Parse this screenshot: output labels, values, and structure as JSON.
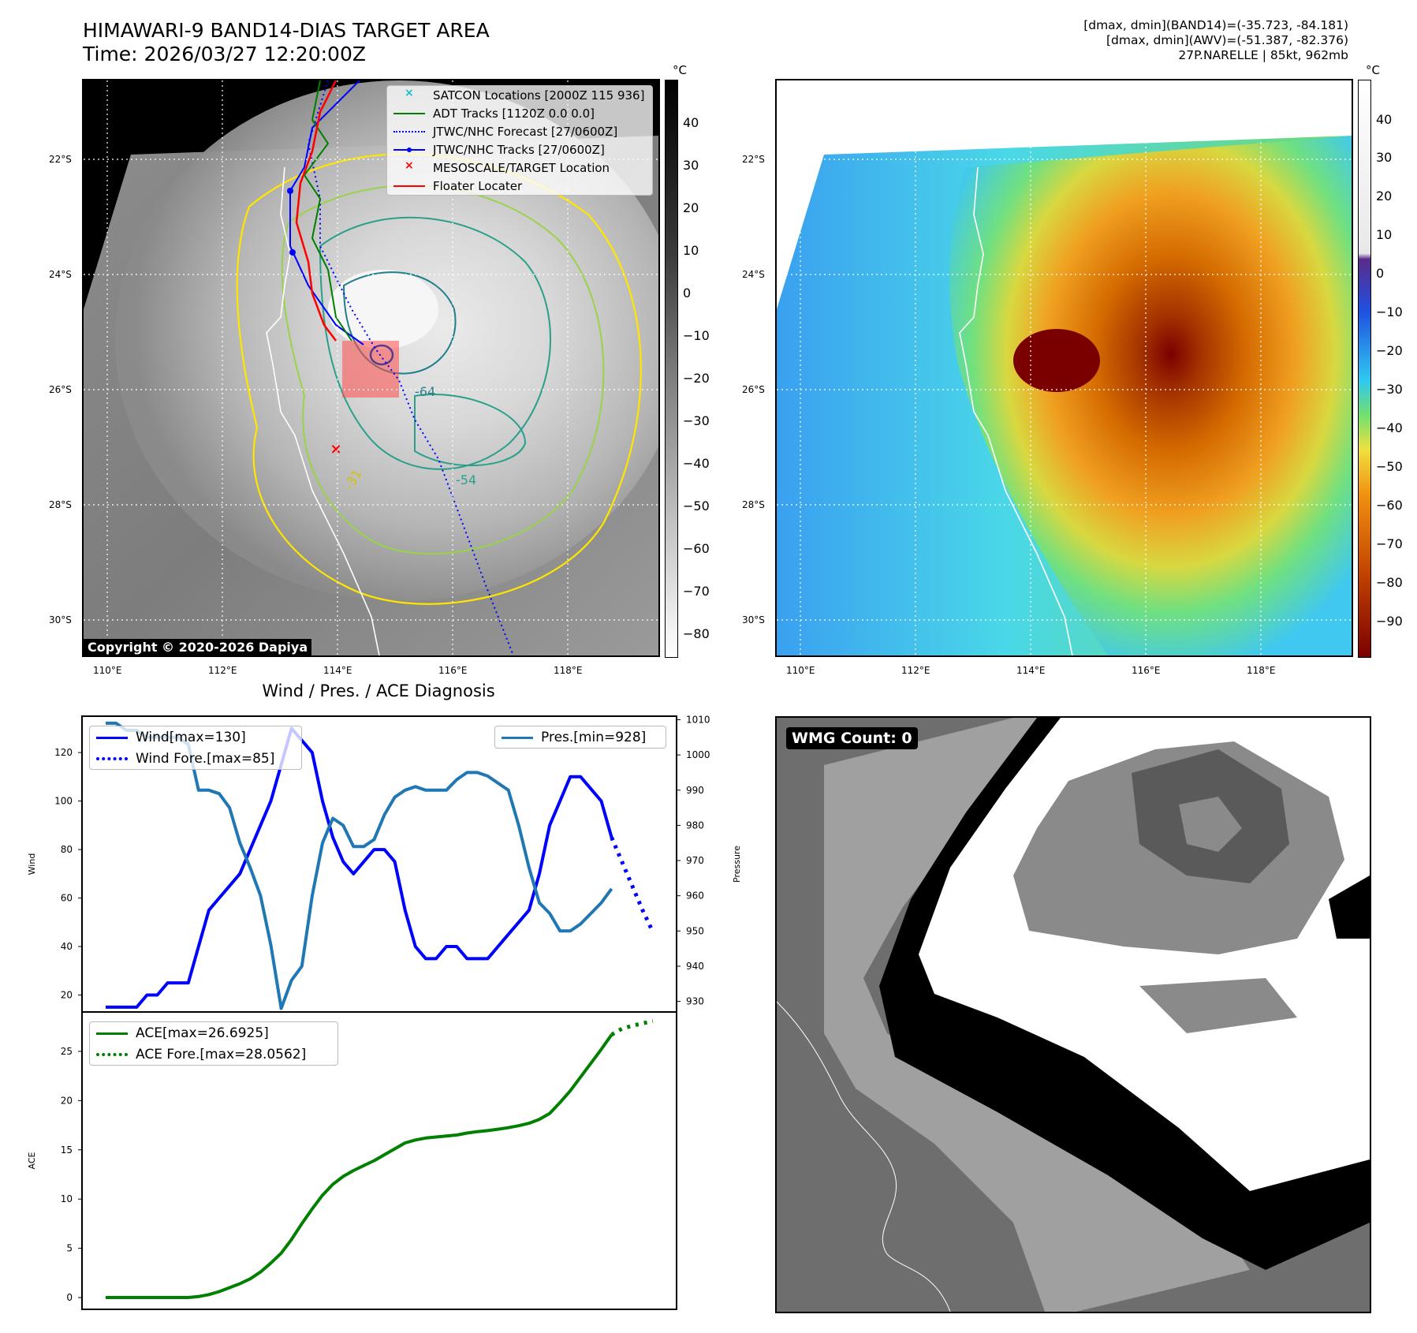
{
  "header": {
    "title_line1": "HIMAWARI-9 BAND14-DIAS TARGET AREA",
    "title_line2": "Time: 2026/03/27 12:20:00Z",
    "info_line1": "[dmax, dmin](BAND14)=(-35.723, -84.181)",
    "info_line2": "[dmax, dmin](AWV)=(-51.387, -82.376)",
    "info_line3": "27P.NARELLE | 85kt, 962mb"
  },
  "map": {
    "lat_labels": [
      "22°S",
      "24°S",
      "26°S",
      "28°S",
      "30°S"
    ],
    "lon_labels": [
      "110°E",
      "112°E",
      "114°E",
      "116°E",
      "118°E"
    ],
    "contour_labels": [
      "-64",
      "-54",
      "-31"
    ],
    "copyright": "Copyright © 2020-2026 Dapiya",
    "legend": [
      {
        "label": "SATCON Locations [2000Z 115 936]",
        "color": "#17becf",
        "marker": "x"
      },
      {
        "label": "ADT Tracks [1120Z 0.0 0.0]",
        "color": "#008000",
        "marker": "line"
      },
      {
        "label": "JTWC/NHC Forecast [27/0600Z]",
        "color": "#0000ff",
        "marker": "dotted"
      },
      {
        "label": "JTWC/NHC Tracks [27/0600Z]",
        "color": "#0000ff",
        "marker": "line-dot"
      },
      {
        "label": "MESOSCALE/TARGET Location",
        "color": "#ff0000",
        "marker": "x"
      },
      {
        "label": "Floater Locater",
        "color": "#ff0000",
        "marker": "line"
      }
    ]
  },
  "colorbar_gray": {
    "unit": "°C",
    "ticks": [
      "40",
      "30",
      "20",
      "10",
      "0",
      "−10",
      "−20",
      "−30",
      "−40",
      "−50",
      "−60",
      "−70",
      "−80"
    ]
  },
  "colorbar_color": {
    "unit": "°C",
    "ticks": [
      "40",
      "30",
      "20",
      "10",
      "0",
      "−10",
      "−20",
      "−30",
      "−40",
      "−50",
      "−60",
      "−70",
      "−80",
      "−90"
    ]
  },
  "wmg": {
    "label": "WMG Count: 0"
  },
  "chart_data": [
    {
      "type": "line",
      "title": "Wind / Pres. / ACE Diagnosis",
      "ylabel": "Wind",
      "y2label": "Pressure",
      "ylim": [
        13,
        135
      ],
      "y2lim": [
        927,
        1011
      ],
      "yticks": [
        "20",
        "40",
        "60",
        "80",
        "100",
        "120"
      ],
      "y2ticks": [
        "930",
        "940",
        "950",
        "960",
        "970",
        "980",
        "990",
        "1000",
        "1010"
      ],
      "series": [
        {
          "name": "Wind[max=130]",
          "color": "#0000ff",
          "style": "solid",
          "x": [
            0,
            1,
            2,
            3,
            4,
            5,
            6,
            7,
            8,
            9,
            10,
            11,
            12,
            13,
            14,
            15,
            16,
            17,
            18,
            19,
            20,
            21,
            22,
            23,
            24,
            25,
            26,
            27,
            28,
            29,
            30,
            31,
            32,
            33,
            34,
            35,
            36,
            37,
            38,
            39,
            40,
            41,
            42,
            43,
            44,
            45,
            46,
            47,
            48,
            49
          ],
          "values": [
            15,
            15,
            15,
            15,
            20,
            20,
            25,
            25,
            25,
            40,
            55,
            60,
            65,
            70,
            80,
            90,
            100,
            115,
            130,
            125,
            120,
            100,
            85,
            75,
            70,
            75,
            80,
            80,
            75,
            55,
            40,
            35,
            35,
            40,
            40,
            35,
            35,
            35,
            40,
            45,
            50,
            55,
            70,
            90,
            100,
            110,
            110,
            105,
            100,
            85
          ]
        },
        {
          "name": "Wind Fore.[max=85]",
          "color": "#0000ff",
          "style": "dotted",
          "x": [
            49,
            50,
            51,
            52,
            53
          ],
          "values": [
            85,
            75,
            65,
            55,
            46
          ]
        },
        {
          "name": "Pres.[min=928]",
          "color": "#1f77b4",
          "style": "solid",
          "axis": "right",
          "x": [
            0,
            1,
            2,
            3,
            4,
            5,
            6,
            7,
            8,
            9,
            10,
            11,
            12,
            13,
            14,
            15,
            16,
            17,
            18,
            19,
            20,
            21,
            22,
            23,
            24,
            25,
            26,
            27,
            28,
            29,
            30,
            31,
            32,
            33,
            34,
            35,
            36,
            37,
            38,
            39,
            40,
            41,
            42,
            43,
            44,
            45,
            46,
            47,
            48,
            49
          ],
          "values": [
            1009,
            1009,
            1007,
            1007,
            1005,
            1005,
            1005,
            1005,
            1003,
            990,
            990,
            989,
            985,
            975,
            968,
            960,
            946,
            928,
            936,
            940,
            960,
            975,
            982,
            980,
            974,
            974,
            976,
            983,
            988,
            990,
            991,
            990,
            990,
            990,
            993,
            995,
            995,
            994,
            992,
            990,
            980,
            968,
            958,
            955,
            950,
            950,
            952,
            955,
            958,
            962
          ]
        }
      ]
    },
    {
      "type": "line",
      "ylabel": "ACE",
      "ylim": [
        -1.2,
        29
      ],
      "yticks": [
        "0",
        "5",
        "10",
        "15",
        "20",
        "25"
      ],
      "series": [
        {
          "name": "ACE[max=26.6925]",
          "color": "#008000",
          "style": "solid",
          "x": [
            0,
            1,
            2,
            3,
            4,
            5,
            6,
            7,
            8,
            9,
            10,
            11,
            12,
            13,
            14,
            15,
            16,
            17,
            18,
            19,
            20,
            21,
            22,
            23,
            24,
            25,
            26,
            27,
            28,
            29,
            30,
            31,
            32,
            33,
            34,
            35,
            36,
            37,
            38,
            39,
            40,
            41,
            42,
            43,
            44,
            45,
            46,
            47,
            48,
            49
          ],
          "values": [
            0,
            0,
            0,
            0,
            0,
            0,
            0,
            0,
            0,
            0.1,
            0.3,
            0.6,
            1.0,
            1.4,
            1.9,
            2.6,
            3.5,
            4.5,
            5.9,
            7.5,
            9.0,
            10.4,
            11.5,
            12.3,
            12.9,
            13.4,
            13.9,
            14.5,
            15.1,
            15.7,
            16.0,
            16.2,
            16.3,
            16.4,
            16.5,
            16.7,
            16.85,
            16.95,
            17.1,
            17.25,
            17.45,
            17.7,
            18.1,
            18.7,
            19.8,
            21.0,
            22.4,
            23.8,
            25.2,
            26.69
          ]
        },
        {
          "name": "ACE Fore.[max=28.0562]",
          "color": "#008000",
          "style": "dotted",
          "x": [
            49,
            50,
            51,
            52,
            53
          ],
          "values": [
            26.69,
            27.3,
            27.6,
            27.85,
            28.06
          ]
        }
      ]
    }
  ]
}
